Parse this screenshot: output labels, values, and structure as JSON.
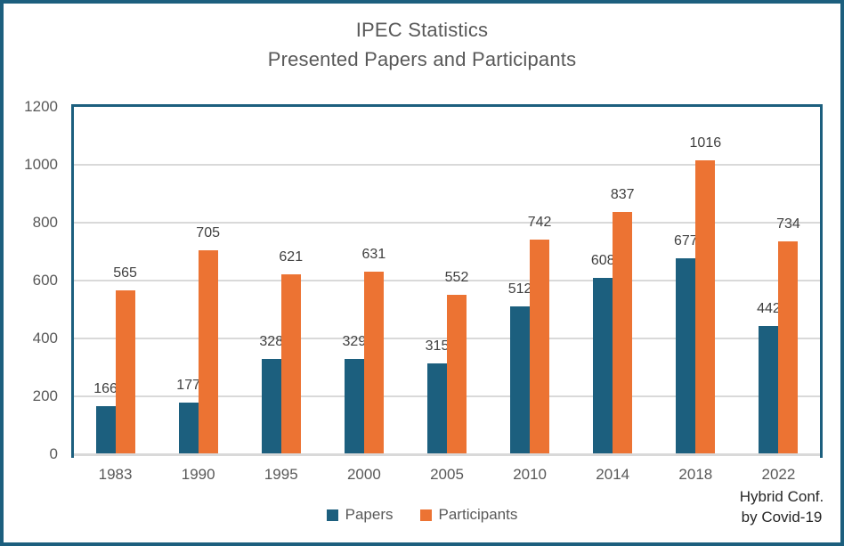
{
  "title": {
    "line1": "IPEC Statistics",
    "line2": "Presented Papers and Participants"
  },
  "annotation": {
    "line1": "Hybrid Conf.",
    "line2": "by Covid-19"
  },
  "colors": {
    "frame_border": "#1C5F7E",
    "plot_border": "#1C5F7E",
    "axis_line": "#D9D9D9",
    "gridline": "#D9D9D9",
    "papers": "#1C5F7E",
    "participants": "#EC7333",
    "title_text": "#595959",
    "axis_text": "#595959",
    "data_label_text": "#404040",
    "annotation_text": "#262626"
  },
  "chart_data": {
    "type": "bar",
    "title": "IPEC Statistics",
    "subtitle": "Presented Papers and Participants",
    "categories": [
      "1983",
      "1990",
      "1995",
      "2000",
      "2005",
      "2010",
      "2014",
      "2018",
      "2022"
    ],
    "series": [
      {
        "name": "Papers",
        "color": "#1C5F7E",
        "values": [
          166,
          177,
          328,
          329,
          315,
          512,
          608,
          677,
          442
        ]
      },
      {
        "name": "Participants",
        "color": "#EC7333",
        "values": [
          565,
          705,
          621,
          631,
          552,
          742,
          837,
          1016,
          734
        ]
      }
    ],
    "ylim": [
      0,
      1200
    ],
    "yticks": [
      0,
      200,
      400,
      600,
      800,
      1000,
      1200
    ],
    "grid": true,
    "data_labels": true,
    "legend_position": "bottom",
    "annotations": [
      {
        "category": "2022",
        "text": "Hybrid Conf. by Covid-19"
      }
    ]
  }
}
